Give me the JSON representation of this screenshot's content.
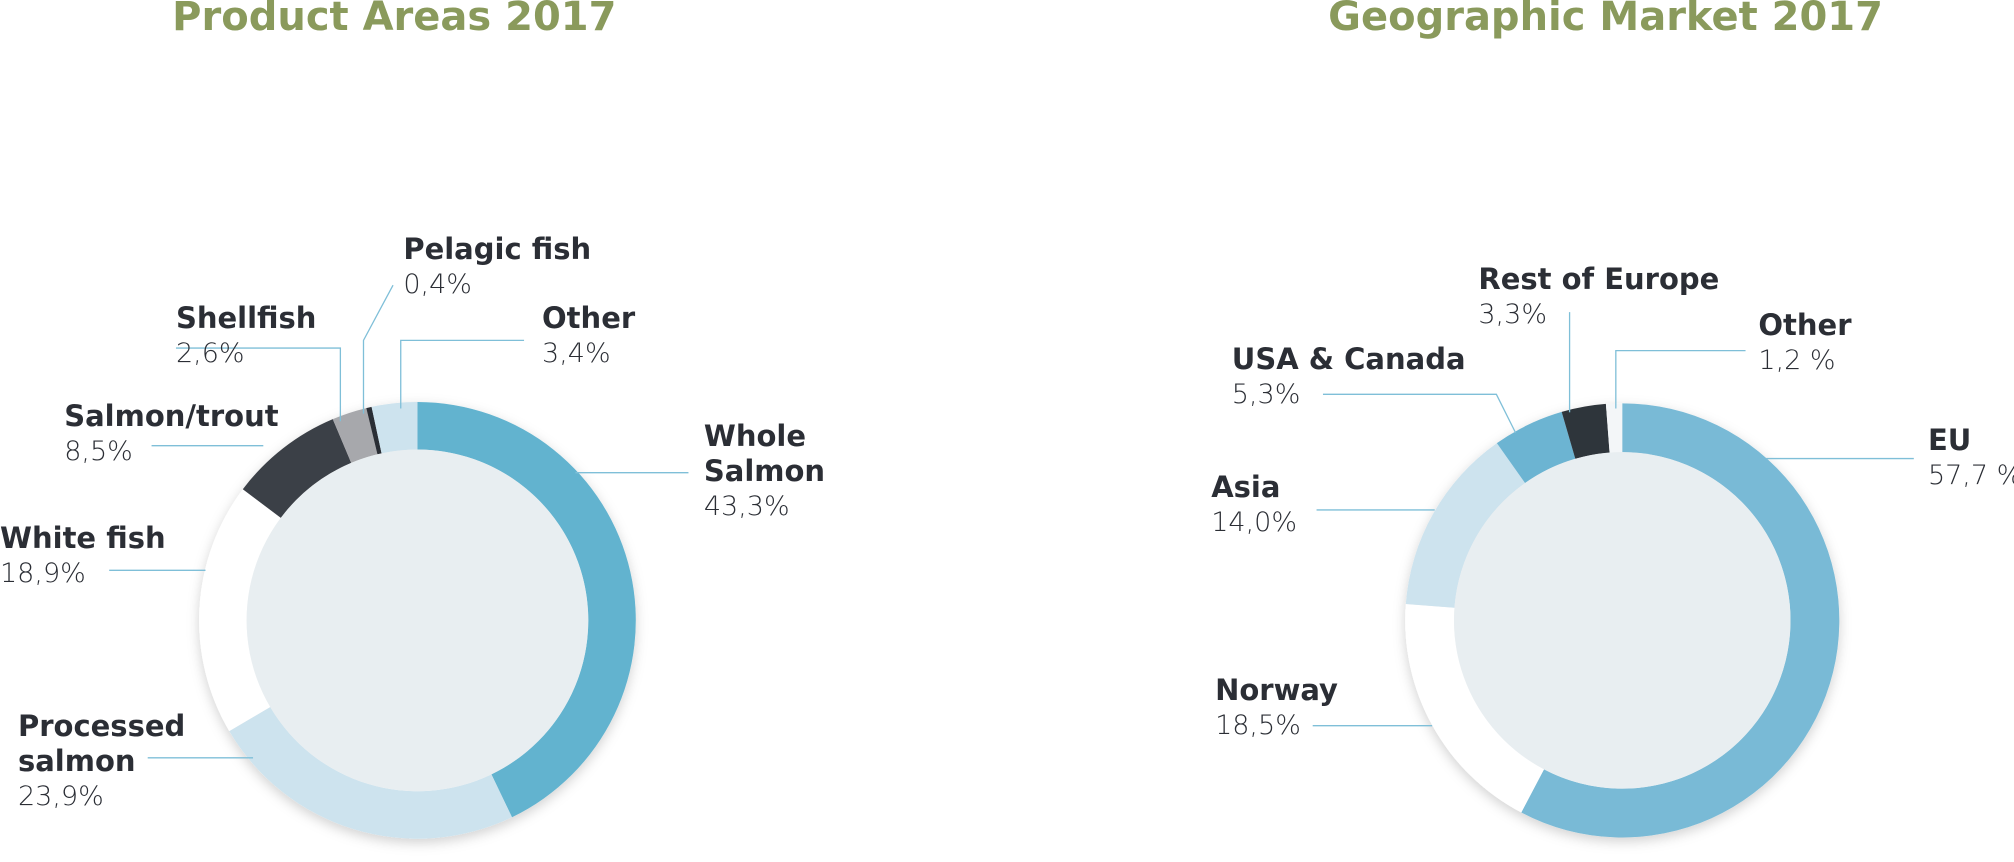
{
  "chart_data": [
    {
      "type": "donut",
      "title": "Product Areas 2017",
      "categories": [
        "Whole Salmon",
        "Processed salmon",
        "White fish",
        "Salmon/trout",
        "Shellfish",
        "Pelagic fish",
        "Other"
      ],
      "values": [
        43.3,
        23.9,
        18.9,
        8.5,
        2.6,
        0.4,
        3.4
      ],
      "value_labels": [
        "43,3%",
        "23,9%",
        "18,9%",
        "8,5%",
        "2,6%",
        "0,4%",
        "3,4%"
      ],
      "colors": [
        "#62b3cf",
        "#cde3ee",
        "#ffffff",
        "#3b3f46",
        "#a7a8ac",
        "#2b2e35",
        "#cde3ee"
      ]
    },
    {
      "type": "donut",
      "title": "Geographic Market 2017",
      "categories": [
        "EU",
        "Norway",
        "Asia",
        "USA & Canada",
        "Rest of Europe",
        "Other"
      ],
      "values": [
        57.7,
        18.5,
        14.0,
        5.3,
        3.3,
        1.2
      ],
      "value_labels": [
        "57,7 %",
        "18,5%",
        "14,0%",
        "5,3%",
        "3,3%",
        "1,2 %"
      ],
      "colors": [
        "#79bad6",
        "#ffffff",
        "#cde3ee",
        "#6cb4d2",
        "#2f343b",
        "#f3f6f8"
      ]
    }
  ]
}
